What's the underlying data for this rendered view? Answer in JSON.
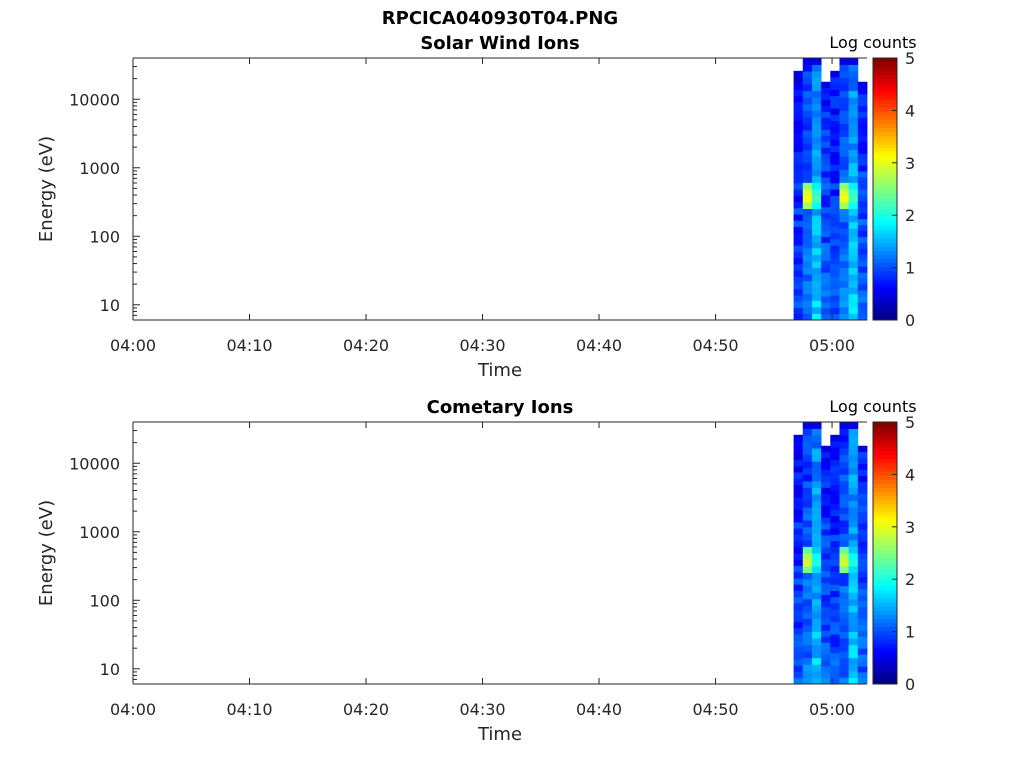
{
  "figure": {
    "title": "RPCICA040930T04.PNG"
  },
  "chart_data": [
    {
      "type": "heatmap",
      "title": "Solar Wind Ions",
      "xlabel": "Time",
      "ylabel": "Energy (eV)",
      "x_ticks": [
        "04:00",
        "04:10",
        "04:20",
        "04:30",
        "04:40",
        "04:50",
        "05:00"
      ],
      "x_range_minutes": [
        0,
        63
      ],
      "y_scale": "log",
      "y_ticks": [
        10,
        100,
        1000,
        10000
      ],
      "y_range": [
        6,
        40000
      ],
      "colorbar": {
        "label": "Log counts",
        "range": [
          0,
          5
        ],
        "ticks": [
          0,
          1,
          2,
          3,
          4,
          5
        ],
        "colormap": "jet"
      },
      "data_start_minute": 56.7,
      "columns": [
        {
          "top": 26000,
          "level": 1.0
        },
        {
          "top": 40000,
          "level": 1.2
        },
        {
          "top": 40000,
          "level": 1.6
        },
        {
          "top": 18000,
          "level": 1.1
        },
        {
          "top": 26000,
          "level": 1.0
        },
        {
          "top": 40000,
          "level": 1.2
        },
        {
          "top": 40000,
          "level": 1.6
        },
        {
          "top": 18000,
          "level": 1.1
        }
      ],
      "peak": {
        "energy_eV": 380,
        "level": 3.2
      }
    },
    {
      "type": "heatmap",
      "title": "Cometary Ions",
      "xlabel": "Time",
      "ylabel": "Energy (eV)",
      "x_ticks": [
        "04:00",
        "04:10",
        "04:20",
        "04:30",
        "04:40",
        "04:50",
        "05:00"
      ],
      "x_range_minutes": [
        0,
        63
      ],
      "y_scale": "log",
      "y_ticks": [
        10,
        100,
        1000,
        10000
      ],
      "y_range": [
        6,
        40000
      ],
      "colorbar": {
        "label": "Log counts",
        "range": [
          0,
          5
        ],
        "ticks": [
          0,
          1,
          2,
          3,
          4,
          5
        ],
        "colormap": "jet"
      },
      "data_start_minute": 56.7,
      "columns": [
        {
          "top": 26000,
          "level": 1.0
        },
        {
          "top": 40000,
          "level": 1.2
        },
        {
          "top": 40000,
          "level": 1.6
        },
        {
          "top": 18000,
          "level": 1.1
        },
        {
          "top": 26000,
          "level": 1.0
        },
        {
          "top": 40000,
          "level": 1.2
        },
        {
          "top": 40000,
          "level": 1.6
        },
        {
          "top": 18000,
          "level": 1.1
        }
      ],
      "peak": {
        "energy_eV": 380,
        "level": 3.0
      }
    }
  ]
}
